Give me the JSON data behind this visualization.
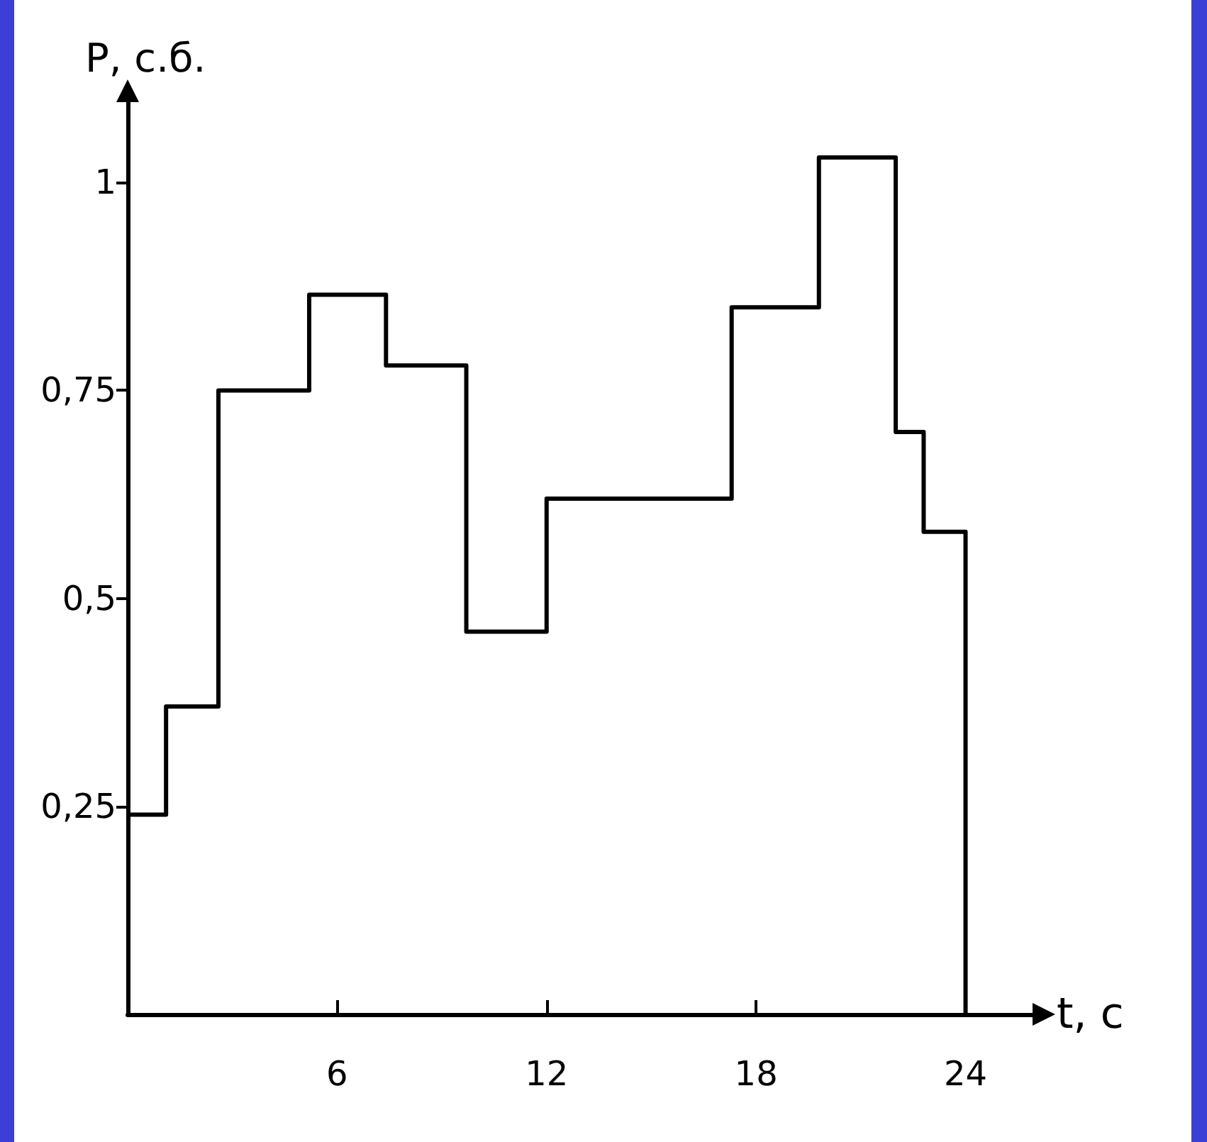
{
  "chart_data": {
    "type": "step",
    "xlabel": "t, с",
    "ylabel": "P, с.б.",
    "x": [
      0,
      1.1,
      2.6,
      5.2,
      7.4,
      9.7,
      12,
      17.3,
      19.8,
      22,
      22.8,
      24
    ],
    "values": [
      0.24,
      0.37,
      0.75,
      0.865,
      0.78,
      0.46,
      0.62,
      0.85,
      1.03,
      0.7,
      0.58,
      0
    ],
    "color": "#000000",
    "xlim": [
      0,
      26
    ],
    "xticks": [
      6,
      12,
      18,
      24
    ],
    "ylim": [
      0,
      1.1
    ],
    "yticks": [
      {
        "value": 0.25,
        "label": "0,25"
      },
      {
        "value": 0.5,
        "label": "0,5"
      },
      {
        "value": 0.75,
        "label": "0,75"
      },
      {
        "value": 1,
        "label": "1"
      }
    ],
    "grid": false,
    "marker": "none",
    "line_style": "solid"
  }
}
